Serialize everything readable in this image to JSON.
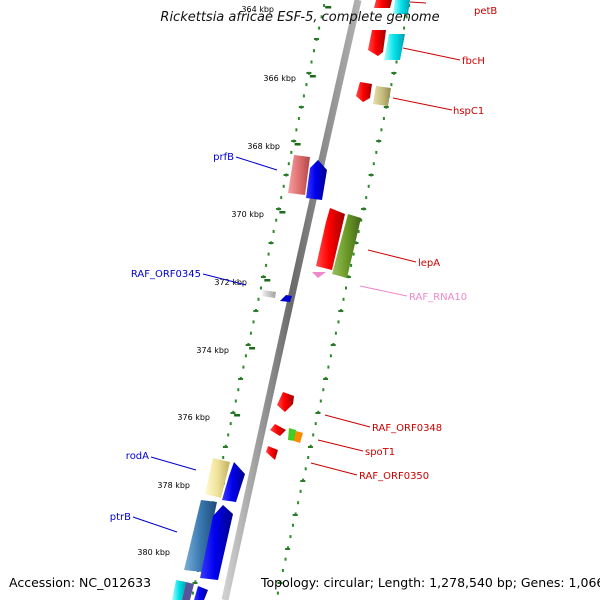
{
  "title": "Rickettsia africae ESF-5, complete genome",
  "footer": {
    "accession": "Accession: NC_012633",
    "summary": "Topology: circular; Length: 1,278,540 bp; Genes: 1,066"
  },
  "ticks": [
    "364 kbp",
    "366 kbp",
    "368 kbp",
    "370 kbp",
    "372 kbp",
    "374 kbp",
    "376 kbp",
    "378 kbp",
    "380 kbp"
  ],
  "genes": [
    {
      "name": "petB",
      "strand": "plus",
      "color": "#cc0000"
    },
    {
      "name": "fbcH",
      "strand": "plus",
      "color": "#cc0000"
    },
    {
      "name": "hspC1",
      "strand": "plus",
      "color": "#cc0000"
    },
    {
      "name": "prfB",
      "strand": "minus",
      "color": "#0000cc"
    },
    {
      "name": "lepA",
      "strand": "plus",
      "color": "#cc0000"
    },
    {
      "name": "RAF_ORF0345",
      "strand": "minus",
      "color": "#0000cc"
    },
    {
      "name": "RAF_RNA10",
      "strand": "plus",
      "color": "#ee88cc"
    },
    {
      "name": "RAF_ORF0348",
      "strand": "plus",
      "color": "#cc0000"
    },
    {
      "name": "spoT1",
      "strand": "plus",
      "color": "#cc0000"
    },
    {
      "name": "RAF_ORF0350",
      "strand": "plus",
      "color": "#cc0000"
    },
    {
      "name": "rodA",
      "strand": "minus",
      "color": "#0000cc"
    },
    {
      "name": "ptrB",
      "strand": "minus",
      "color": "#0000cc"
    }
  ]
}
